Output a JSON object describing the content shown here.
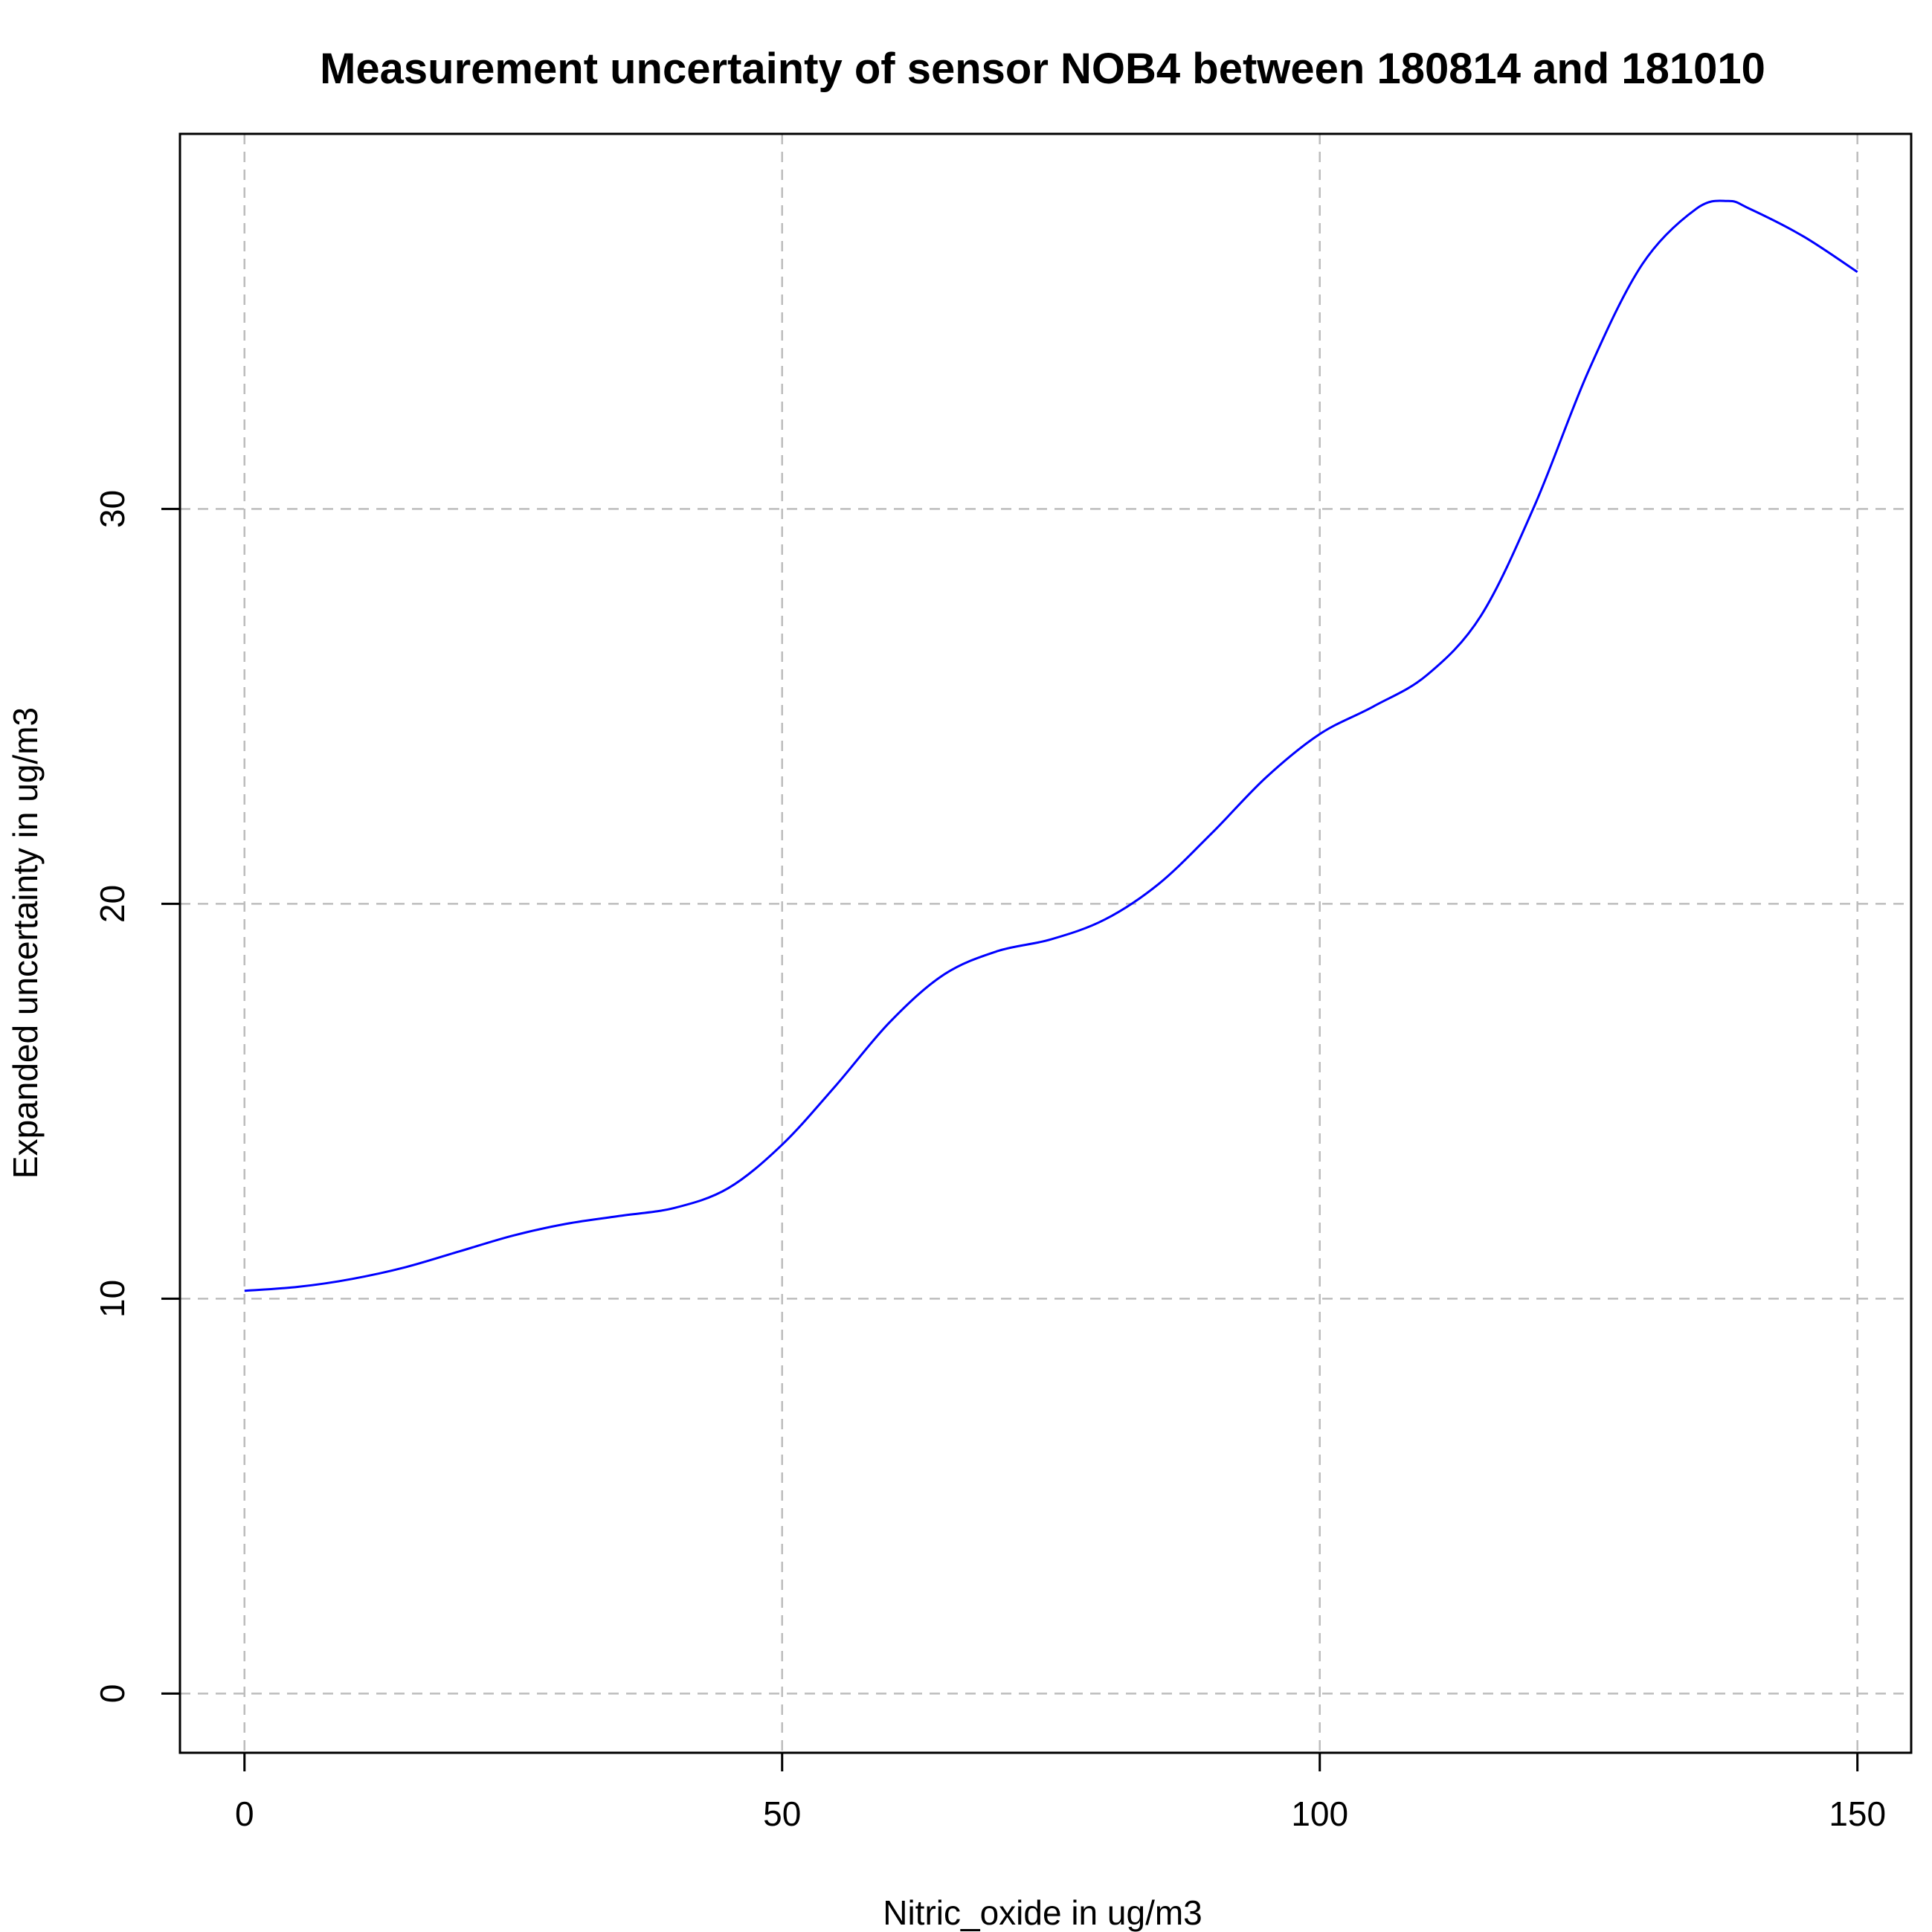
{
  "chart_data": {
    "type": "line",
    "title": "Measurement uncertainty of sensor NOB4 between 180814 and 181010",
    "xlabel": "Nitric_oxide in ug/m3",
    "ylabel": "Expanded uncertainty in ug/m3",
    "xlim": [
      -6,
      155
    ],
    "ylim": [
      -1.5,
      39.5
    ],
    "x_ticks": [
      0,
      50,
      100,
      150
    ],
    "y_ticks": [
      0,
      10,
      20,
      30
    ],
    "grid": true,
    "legend": "none",
    "series": [
      {
        "color": "#0000ff",
        "x": [
          0,
          5,
          10,
          15,
          20,
          25,
          30,
          35,
          40,
          45,
          50,
          55,
          60,
          65,
          70,
          75,
          80,
          85,
          90,
          95,
          100,
          105,
          110,
          115,
          120,
          125,
          130,
          135,
          138,
          140,
          145,
          150
        ],
        "y": [
          10.2,
          10.3,
          10.5,
          10.8,
          11.2,
          11.6,
          11.9,
          12.1,
          12.3,
          12.8,
          13.9,
          15.4,
          17.0,
          18.2,
          18.8,
          19.1,
          19.6,
          20.5,
          21.8,
          23.2,
          24.3,
          25.0,
          25.8,
          27.3,
          30.1,
          33.5,
          36.2,
          37.6,
          37.8,
          37.6,
          36.9,
          36.0
        ]
      }
    ]
  }
}
